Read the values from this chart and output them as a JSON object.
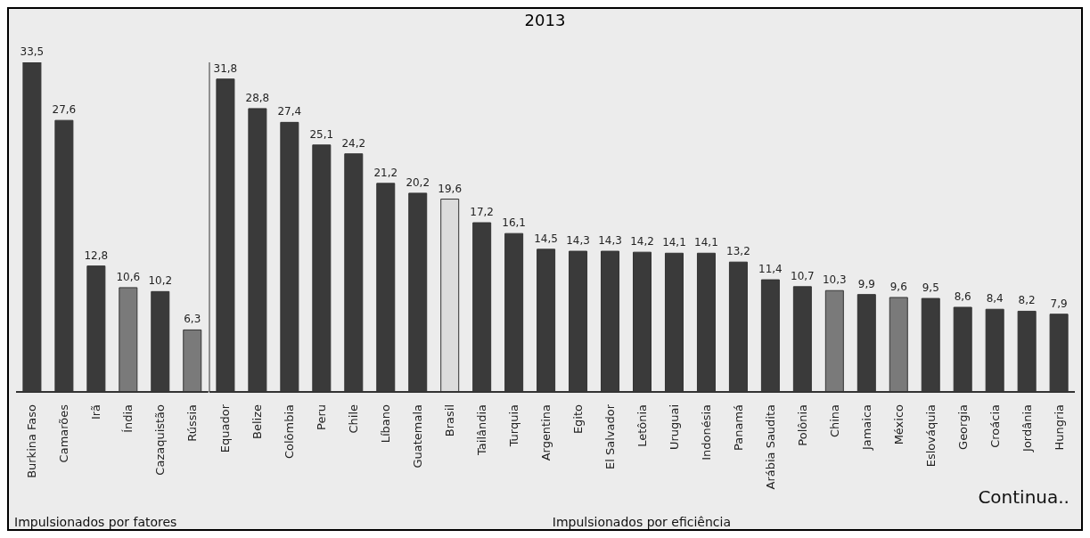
{
  "chart_data": [
    {
      "type": "bar",
      "categories": [
        "Burkina Faso",
        "Camarões",
        "Irã",
        "Índia",
        "Cazaquistão",
        "Rússia"
      ],
      "values": [
        33.5,
        27.6,
        12.8,
        10.6,
        10.2,
        6.3
      ],
      "value_labels": [
        "33,5",
        "27,6",
        "12,8",
        "10,6",
        "10,2",
        "6,3"
      ],
      "colors": [
        "#3a3a3a",
        "#3a3a3a",
        "#3a3a3a",
        "#7a7a7a",
        "#3a3a3a",
        "#7a7a7a"
      ],
      "annotations": [
        "Impulsionados por fatores"
      ]
    },
    {
      "type": "bar",
      "title": "2013",
      "categories": [
        "Equador",
        "Belize",
        "Colômbia",
        "Peru",
        "Chile",
        "Líbano",
        "Guatemala",
        "Brasil",
        "Tailândia",
        "Turquia",
        "Argentina",
        "Egito",
        "El Salvador",
        "Letônia",
        "Uruguai",
        "Indonésia",
        "Panamá",
        "Arábia Saudita",
        "Polônia",
        "China",
        "Jamaica",
        "México",
        "Eslováquia",
        "Georgia",
        "Croácia",
        "Jordânia",
        "Hungria"
      ],
      "values": [
        31.8,
        28.8,
        27.4,
        25.1,
        24.2,
        21.2,
        20.2,
        19.6,
        17.2,
        16.1,
        14.5,
        14.3,
        14.3,
        14.2,
        14.1,
        14.1,
        13.2,
        11.4,
        10.7,
        10.3,
        9.9,
        9.6,
        9.5,
        8.6,
        8.4,
        8.2,
        7.9
      ],
      "value_labels": [
        "31,8",
        "28,8",
        "27,4",
        "25,1",
        "24,2",
        "21,2",
        "20,2",
        "19,6",
        "17,2",
        "16,1",
        "14,5",
        "14,3",
        "14,3",
        "14,2",
        "14,1",
        "14,1",
        "13,2",
        "11,4",
        "10,7",
        "10,3",
        "9,9",
        "9,6",
        "9,5",
        "8,6",
        "8,4",
        "8,2",
        "7,9"
      ],
      "colors": [
        "#3a3a3a",
        "#3a3a3a",
        "#3a3a3a",
        "#3a3a3a",
        "#3a3a3a",
        "#3a3a3a",
        "#3a3a3a",
        "#dcdcdc",
        "#3a3a3a",
        "#3a3a3a",
        "#3a3a3a",
        "#3a3a3a",
        "#3a3a3a",
        "#3a3a3a",
        "#3a3a3a",
        "#3a3a3a",
        "#3a3a3a",
        "#3a3a3a",
        "#3a3a3a",
        "#7a7a7a",
        "#3a3a3a",
        "#7a7a7a",
        "#3a3a3a",
        "#3a3a3a",
        "#3a3a3a",
        "#3a3a3a",
        "#3a3a3a"
      ],
      "annotations": [
        "Impulsionados por eficiência",
        "Continua.."
      ]
    }
  ]
}
